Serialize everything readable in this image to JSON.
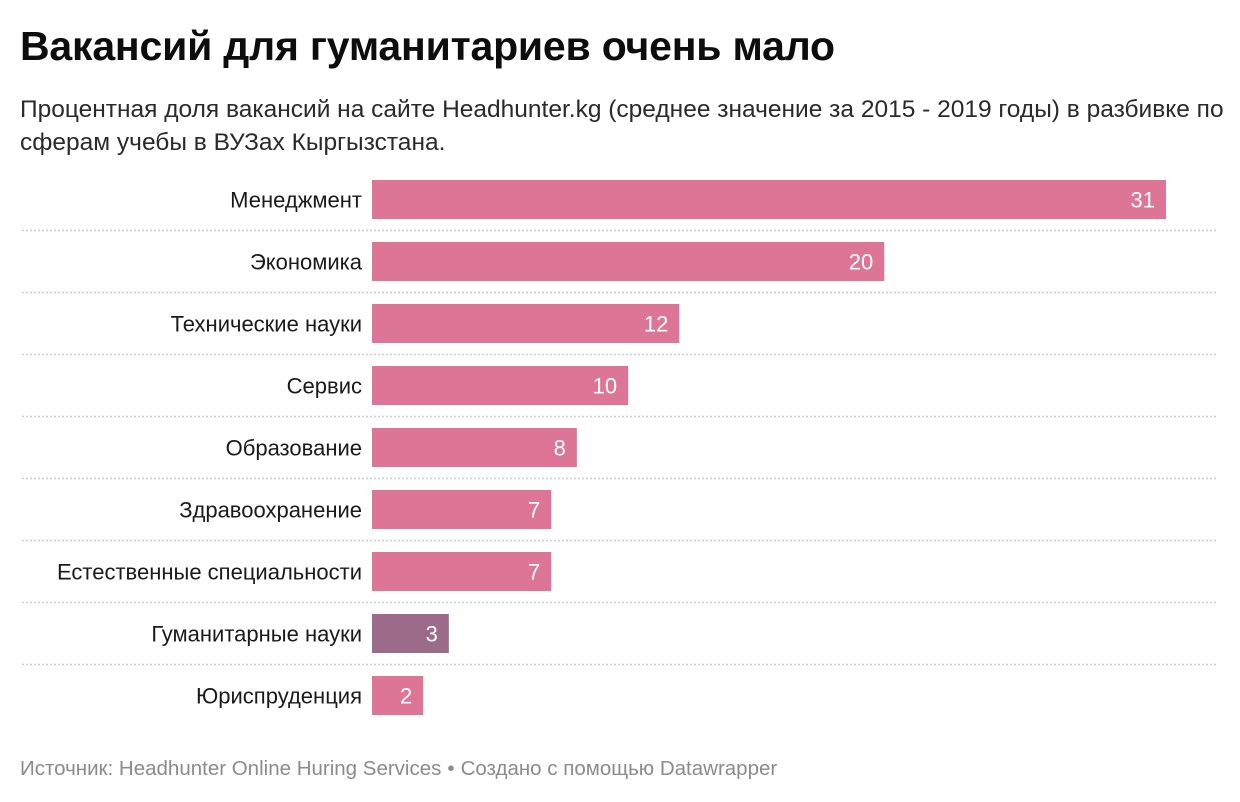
{
  "title": "Вакансий для гуманитариев очень мало",
  "subtitle": "Процентная доля вакансий на сайте Headhunter.kg (среднее значение за 2015 - 2019 годы) в разбивке по сферам учебы в ВУЗах Кыргызстана.",
  "footer": {
    "source": "Источник: Headhunter Online Huring Services",
    "separator": "•",
    "credit": "Создано с помощью Datawrapper"
  },
  "colors": {
    "bar_default": "#dd7596",
    "bar_highlight": "#9c6b8a",
    "value_label": "#ffffff",
    "gridline": "#cfcfcf"
  },
  "chart_data": {
    "type": "bar",
    "orientation": "horizontal",
    "categories": [
      "Менеджмент",
      "Экономика",
      "Технические науки",
      "Сервис",
      "Образование",
      "Здравоохранение",
      "Естественные специальности",
      "Гуманитарные науки",
      "Юриспруденция"
    ],
    "values": [
      31,
      20,
      12,
      10,
      8,
      7,
      7,
      3,
      2
    ],
    "highlighted": [
      "Гуманитарные науки"
    ],
    "xlim": [
      0,
      31
    ],
    "grid": false,
    "legend": "none"
  }
}
